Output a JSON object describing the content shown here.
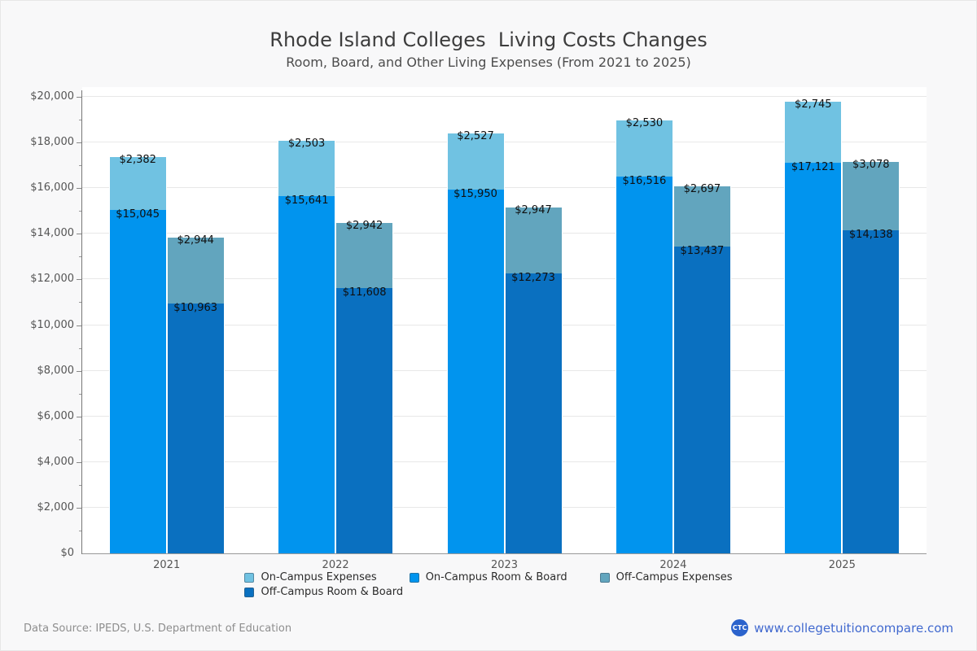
{
  "header": {
    "title": "Rhode Island Colleges  Living Costs Changes",
    "subtitle": "Room, Board, and Other Living Expenses (From 2021 to 2025)"
  },
  "footer": {
    "source_text": "Data Source: IPEDS, U.S. Department of Education",
    "brand_logo_text": "CTC",
    "brand_url": "www.collegetuitioncompare.com",
    "brand_color": "#2b63cc",
    "link_color": "#4169cf"
  },
  "colors": {
    "on_campus_expenses": "#70c2e2",
    "on_campus_room_board": "#0194ee",
    "off_campus_expenses": "#62a5be",
    "off_campus_room_board": "#0a70c0",
    "grid": "#e8e8e8",
    "axis": "#777777",
    "label": "#101010"
  },
  "legend": {
    "row1": [
      {
        "key": "on_campus_expenses",
        "label": "On-Campus Expenses"
      },
      {
        "key": "on_campus_room_board",
        "label": "On-Campus Room & Board"
      },
      {
        "key": "off_campus_expenses",
        "label": "Off-Campus Expenses"
      }
    ],
    "row2": [
      {
        "key": "off_campus_room_board",
        "label": "Off-Campus Room & Board"
      }
    ]
  },
  "chart_data": {
    "type": "bar",
    "stacked": true,
    "title": "Rhode Island Colleges  Living Costs Changes",
    "subtitle": "Room, Board, and Other Living Expenses (From 2021 to 2025)",
    "categories": [
      "2021",
      "2022",
      "2023",
      "2024",
      "2025"
    ],
    "series": [
      {
        "name": "On-Campus Room & Board",
        "stack": "on_campus",
        "color_key": "on_campus_room_board",
        "values": [
          15045,
          15641,
          15950,
          16516,
          17121
        ]
      },
      {
        "name": "On-Campus Expenses",
        "stack": "on_campus",
        "color_key": "on_campus_expenses",
        "values": [
          2382,
          2503,
          2527,
          2530,
          2745
        ]
      },
      {
        "name": "Off-Campus Room & Board",
        "stack": "off_campus",
        "color_key": "off_campus_room_board",
        "values": [
          10963,
          11608,
          12273,
          13437,
          14138
        ]
      },
      {
        "name": "Off-Campus Expenses",
        "stack": "off_campus",
        "color_key": "off_campus_expenses",
        "values": [
          2944,
          2942,
          2947,
          2697,
          3078
        ]
      }
    ],
    "stack_order": [
      "on_campus",
      "off_campus"
    ],
    "xlabel": "",
    "ylabel": "",
    "ylim": [
      0,
      20000
    ],
    "ytick_step": 2000,
    "ytick_minor_step": 1000,
    "ytick_format": "$#,###",
    "grid": true,
    "legend_position": "bottom"
  }
}
